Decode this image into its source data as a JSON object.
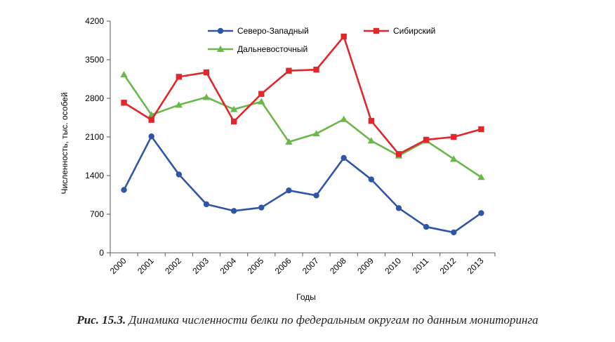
{
  "caption": {
    "label": "Рис. 15.3.",
    "text": " Динамика численности белки по федеральным округам по данным мониторинга"
  },
  "chart_data": {
    "type": "line",
    "title": "",
    "xlabel": "Годы",
    "ylabel": "Численность, тыс. особей",
    "x": [
      "2000",
      "2001",
      "2002",
      "2003",
      "2004",
      "2005",
      "2006",
      "2007",
      "2008",
      "2009",
      "2010",
      "2011",
      "2012",
      "2013"
    ],
    "ylim": [
      0,
      4200
    ],
    "yticks": [
      0,
      700,
      1400,
      2100,
      2800,
      3500,
      4200
    ],
    "grid": false,
    "legend_position": "top",
    "series": [
      {
        "name": "Северо-Западный",
        "color": "#2f56a6",
        "marker": "circle",
        "values": [
          1140,
          2110,
          1420,
          880,
          760,
          820,
          1130,
          1040,
          1720,
          1330,
          810,
          470,
          370,
          720
        ]
      },
      {
        "name": "Сибирский",
        "color": "#e0282c",
        "marker": "square",
        "values": [
          2720,
          2410,
          3190,
          3270,
          2380,
          2880,
          3300,
          3320,
          3920,
          2390,
          1790,
          2050,
          2100,
          2240
        ]
      },
      {
        "name": "Дальневосточный",
        "color": "#6ab84a",
        "marker": "triangle",
        "values": [
          3230,
          2500,
          2680,
          2820,
          2600,
          2740,
          2010,
          2160,
          2420,
          2030,
          1760,
          2030,
          1700,
          1370
        ]
      }
    ]
  }
}
